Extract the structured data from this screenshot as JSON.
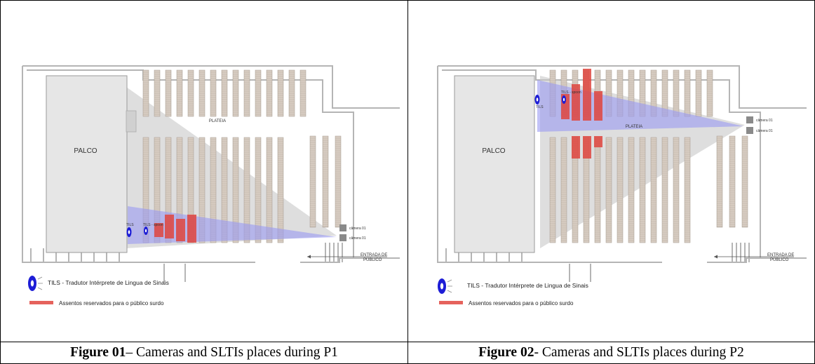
{
  "figures": [
    {
      "labels": {
        "stage": "PALCO",
        "audience": "PLATEIA",
        "tils": "TILS",
        "tils_spoon": "TILS - spoon",
        "camera_1": "câmera 01",
        "camera_2": "câmera 01",
        "entrance_line1": "ENTRADA DE",
        "entrance_line2": "PÚBLICO",
        "legend_tils": "TILS - Tradutor Intérprete de Lingua de Sinais",
        "legend_seats": "Assentos reservados para o público surdo"
      },
      "caption": {
        "number": "Figure 01",
        "text": " – Cameras and SLTIs places during P1"
      }
    },
    {
      "labels": {
        "stage": "PALCO",
        "audience": "PLATEIA",
        "tils": "TILS",
        "tils_spoon": "TILS - spoon",
        "camera_1": "câmera 01",
        "camera_2": "câmera 01",
        "entrance_line1": "ENTRADA DE",
        "entrance_line2": "PÚBLICO",
        "legend_tils": "TILS - Tradutor Intérprete de Lingua de Sinais",
        "legend_seats": "Assentos reservados para o público surdo"
      },
      "caption": {
        "number": "Figure 02",
        "text": " - Cameras and SLTIs places during P2"
      }
    }
  ],
  "colors": {
    "stage_fill": "#e6e6e6",
    "seat_fill": "#d8cdc3",
    "seat_edge": "#a3978c",
    "reserved_seat": "#e0463f",
    "camera_view_gray": "#c8c8c8",
    "camera_view_blue": "#9a9af2",
    "tils_icon": "#1d1dd6"
  }
}
